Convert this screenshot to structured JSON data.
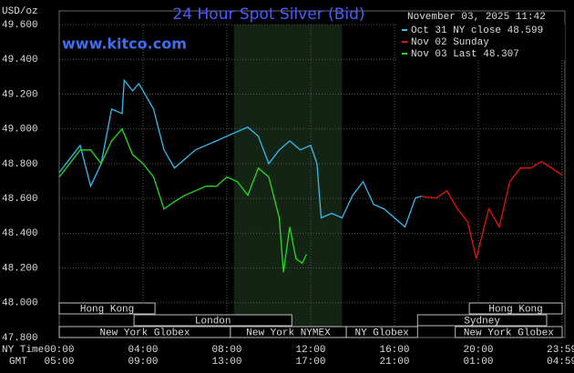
{
  "chart_data": {
    "type": "line",
    "title": "24 Hour Spot Silver (Bid)",
    "watermark": "www.kitco.com",
    "timestamp": "November 03, 2025 11:42",
    "y_label": "USD/oz",
    "x_label": "NY Time",
    "x2_label": "GMT",
    "xlim": [
      0,
      24
    ],
    "ylim": [
      47.8,
      49.6
    ],
    "yticks": [
      {
        "value": 49.6,
        "label": "49.600"
      },
      {
        "value": 49.4,
        "label": "49.400"
      },
      {
        "value": 49.2,
        "label": "49.200"
      },
      {
        "value": 49.0,
        "label": "49.000"
      },
      {
        "value": 48.8,
        "label": "48.800"
      },
      {
        "value": 48.6,
        "label": "48.600"
      },
      {
        "value": 48.4,
        "label": "48.400"
      },
      {
        "value": 48.2,
        "label": "48.200"
      },
      {
        "value": 48.0,
        "label": "48.000"
      },
      {
        "value": 47.8,
        "label": "47.800"
      }
    ],
    "xticks": [
      {
        "value": 0,
        "label": "00:00"
      },
      {
        "value": 4,
        "label": "04:00"
      },
      {
        "value": 8,
        "label": "08:00"
      },
      {
        "value": 12,
        "label": "12:00"
      },
      {
        "value": 16,
        "label": "16:00"
      },
      {
        "value": 20,
        "label": "20:00"
      },
      {
        "value": 23.983,
        "label": "23:59"
      }
    ],
    "gmt_labels": [
      "05:00",
      "09:00",
      "13:00",
      "17:00",
      "21:00",
      "01:00",
      "04:59"
    ],
    "grid": true,
    "session_band": {
      "start": 8.333,
      "end": 13.5
    },
    "sessions": [
      {
        "label": "Hong Kong",
        "start": 0,
        "end": 4.57
      },
      {
        "label": "London",
        "start": 3.57,
        "end": 11.1
      },
      {
        "label": "New York Globex",
        "start": 0,
        "end": 8.17
      },
      {
        "label": "New York NYMEX",
        "start": 8.17,
        "end": 13.7
      },
      {
        "label": "NY Globex",
        "start": 13.7,
        "end": 17.1
      },
      {
        "label": "Hong Kong",
        "start": 19.57,
        "end": 24
      },
      {
        "label": "Sydney",
        "start": 17.1,
        "end": 23.26
      },
      {
        "label": "New York Globex",
        "start": 18.9,
        "end": 24
      }
    ],
    "series": [
      {
        "name": "Oct 31 NY close 48.599",
        "color": "#33bbf0",
        "x": [
          0,
          0.5,
          1,
          1.5,
          2,
          2.5,
          3,
          3.1,
          3.5,
          3.8,
          4,
          4.5,
          5,
          5.5,
          6,
          6.5,
          7,
          7.5,
          8,
          8.5,
          9,
          9.5,
          10,
          10.5,
          11,
          11.5,
          12,
          12.3,
          12.5,
          13,
          13.5,
          14,
          14.5,
          15,
          15.5,
          16,
          16.5,
          17,
          17.3
        ],
        "values": [
          48.749,
          48.827,
          48.905,
          48.67,
          48.8,
          49.114,
          49.088,
          49.28,
          49.219,
          49.26,
          49.219,
          49.114,
          48.879,
          48.775,
          48.827,
          48.879,
          48.905,
          48.931,
          48.958,
          48.984,
          49.01,
          48.958,
          48.8,
          48.879,
          48.931,
          48.879,
          48.905,
          48.8,
          48.488,
          48.514,
          48.488,
          48.618,
          48.697,
          48.566,
          48.54,
          48.488,
          48.436,
          48.603,
          48.613
        ]
      },
      {
        "name": "Nov 02 Sunday",
        "color": "#e81010",
        "x": [
          17.3,
          17.5,
          18,
          18.5,
          19,
          19.5,
          19.9,
          20,
          20.5,
          21,
          21.5,
          22,
          22.5,
          23,
          23.5,
          24
        ],
        "values": [
          48.613,
          48.608,
          48.603,
          48.644,
          48.54,
          48.462,
          48.253,
          48.305,
          48.54,
          48.436,
          48.697,
          48.775,
          48.775,
          48.812,
          48.775,
          48.733
        ]
      },
      {
        "name": "Nov 03 Last 48.307",
        "color": "#22dd22",
        "x": [
          0,
          0.5,
          1,
          1.5,
          2,
          2.5,
          3,
          3.5,
          4,
          4.5,
          5,
          5.5,
          6,
          6.5,
          7,
          7.5,
          8,
          8.5,
          9,
          9.5,
          10,
          10.5,
          10.7,
          11,
          11.3,
          11.6,
          11.8
        ],
        "values": [
          48.723,
          48.8,
          48.879,
          48.879,
          48.8,
          48.931,
          49.0,
          48.853,
          48.8,
          48.723,
          48.54,
          48.582,
          48.618,
          48.644,
          48.67,
          48.67,
          48.723,
          48.697,
          48.618,
          48.775,
          48.723,
          48.488,
          48.175,
          48.436,
          48.253,
          48.227,
          48.279
        ]
      }
    ]
  }
}
